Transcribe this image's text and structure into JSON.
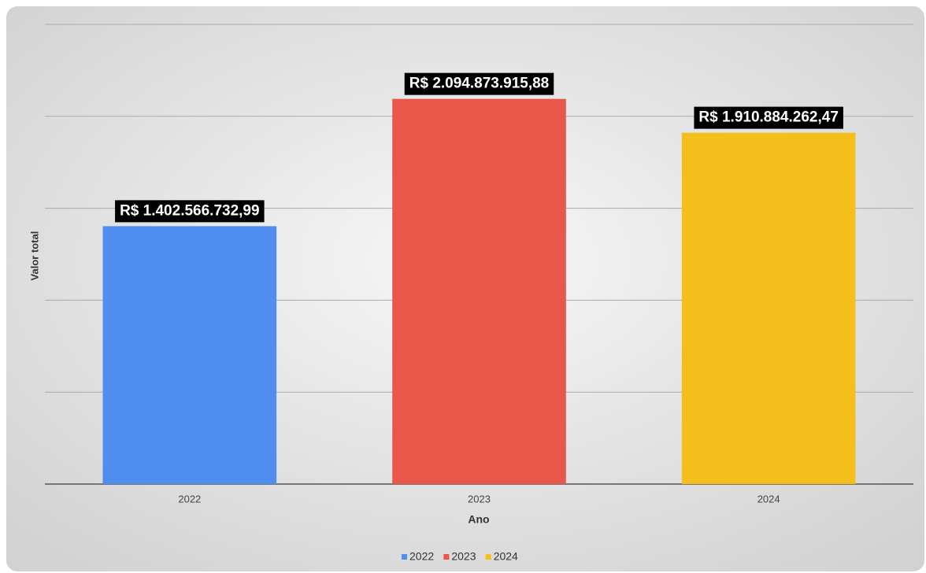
{
  "chart_data": {
    "type": "bar",
    "categories": [
      "2022",
      "2023",
      "2024"
    ],
    "values": [
      1402566732.99,
      2094873915.88,
      1910884262.47
    ],
    "value_labels": [
      "R$ 1.402.566.732,99",
      "R$ 2.094.873.915,88",
      "R$ 1.910.884.262,47"
    ],
    "colors": [
      "#4f8def",
      "#e9574b",
      "#f4bf1d"
    ],
    "x_label": "Ano",
    "y_label": "Valor total",
    "ylim": [
      0,
      2500000000
    ],
    "yticks": [
      0,
      500000000,
      1000000000,
      1500000000,
      2000000000,
      2500000000
    ],
    "grid": true,
    "legend": "bottom"
  }
}
